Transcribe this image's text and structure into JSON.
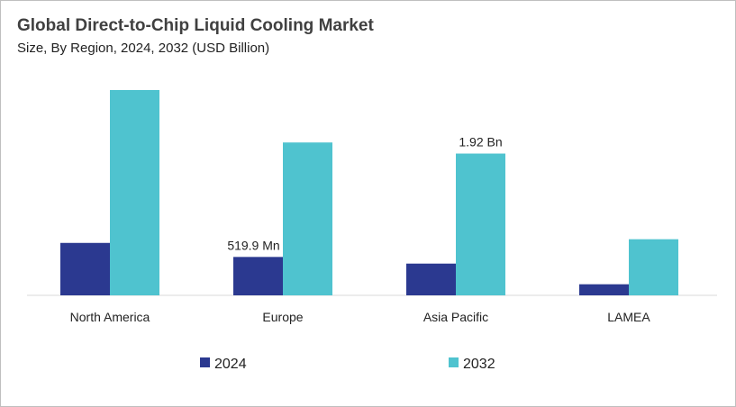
{
  "chart_data": {
    "type": "bar",
    "title": "Global Direct-to-Chip Liquid Cooling Market",
    "subtitle": "Size, By Region, 2024, 2032 (USD Billion)",
    "categories": [
      "North America",
      "Europe",
      "Asia Pacific",
      "LAMEA"
    ],
    "series": [
      {
        "name": "2024",
        "color": "#2B3990",
        "values": [
          0.71,
          0.52,
          0.43,
          0.15
        ]
      },
      {
        "name": "2032",
        "color": "#4FC3CF",
        "values": [
          2.78,
          2.07,
          1.92,
          0.76
        ]
      }
    ],
    "data_labels": [
      {
        "series": "2024",
        "category": "Europe",
        "text": "519.9 Mn"
      },
      {
        "series": "2032",
        "category": "Asia Pacific",
        "text": "1.92 Bn"
      }
    ],
    "ylim": [
      0,
      2.8
    ],
    "grid": false,
    "legend": "bottom",
    "xlabel": "",
    "ylabel": ""
  }
}
